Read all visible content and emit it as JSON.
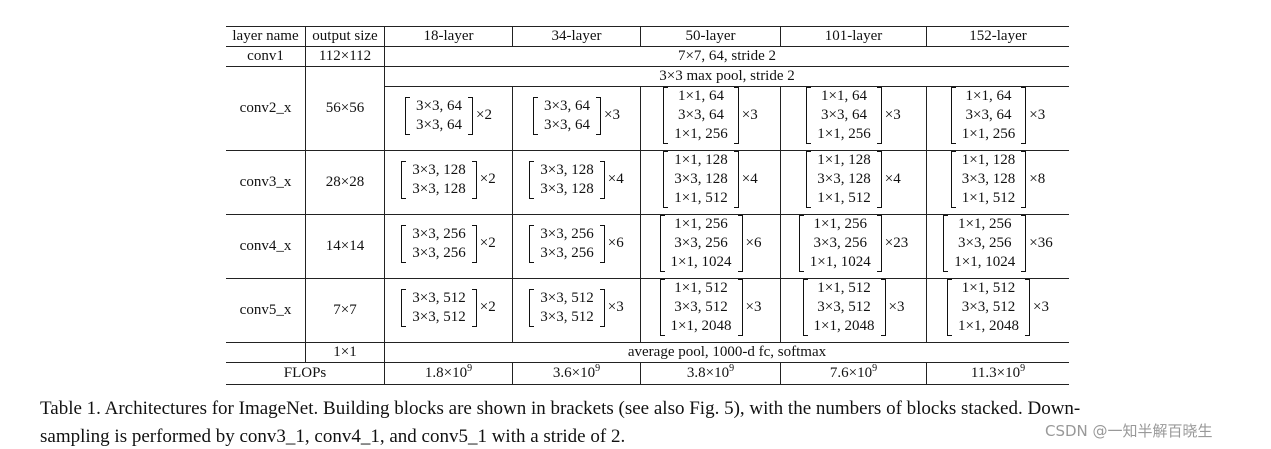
{
  "table": {
    "header": [
      "layer name",
      "output size",
      "18-layer",
      "34-layer",
      "50-layer",
      "101-layer",
      "152-layer"
    ],
    "conv1": {
      "name": "conv1",
      "size": "112×112",
      "spec": "7×7, 64, stride 2"
    },
    "pool": "3×3 max pool, stride 2",
    "stages": [
      {
        "name": "conv2_x",
        "size": "56×56",
        "blocks": [
          {
            "lines": [
              "3×3, 64",
              "3×3, 64"
            ],
            "times": "×2"
          },
          {
            "lines": [
              "3×3, 64",
              "3×3, 64"
            ],
            "times": "×3"
          },
          {
            "lines": [
              "1×1, 64",
              "3×3, 64",
              "1×1, 256"
            ],
            "times": "×3"
          },
          {
            "lines": [
              "1×1, 64",
              "3×3, 64",
              "1×1, 256"
            ],
            "times": "×3"
          },
          {
            "lines": [
              "1×1, 64",
              "3×3, 64",
              "1×1, 256"
            ],
            "times": "×3"
          }
        ]
      },
      {
        "name": "conv3_x",
        "size": "28×28",
        "blocks": [
          {
            "lines": [
              "3×3, 128",
              "3×3, 128"
            ],
            "times": "×2"
          },
          {
            "lines": [
              "3×3, 128",
              "3×3, 128"
            ],
            "times": "×4"
          },
          {
            "lines": [
              "1×1, 128",
              "3×3, 128",
              "1×1, 512"
            ],
            "times": "×4"
          },
          {
            "lines": [
              "1×1, 128",
              "3×3, 128",
              "1×1, 512"
            ],
            "times": "×4"
          },
          {
            "lines": [
              "1×1, 128",
              "3×3, 128",
              "1×1, 512"
            ],
            "times": "×8"
          }
        ]
      },
      {
        "name": "conv4_x",
        "size": "14×14",
        "blocks": [
          {
            "lines": [
              "3×3, 256",
              "3×3, 256"
            ],
            "times": "×2"
          },
          {
            "lines": [
              "3×3, 256",
              "3×3, 256"
            ],
            "times": "×6"
          },
          {
            "lines": [
              "1×1, 256",
              "3×3, 256",
              "1×1, 1024"
            ],
            "times": "×6"
          },
          {
            "lines": [
              "1×1, 256",
              "3×3, 256",
              "1×1, 1024"
            ],
            "times": "×23"
          },
          {
            "lines": [
              "1×1, 256",
              "3×3, 256",
              "1×1, 1024"
            ],
            "times": "×36"
          }
        ]
      },
      {
        "name": "conv5_x",
        "size": "7×7",
        "blocks": [
          {
            "lines": [
              "3×3, 512",
              "3×3, 512"
            ],
            "times": "×2"
          },
          {
            "lines": [
              "3×3, 512",
              "3×3, 512"
            ],
            "times": "×3"
          },
          {
            "lines": [
              "1×1, 512",
              "3×3, 512",
              "1×1, 2048"
            ],
            "times": "×3"
          },
          {
            "lines": [
              "1×1, 512",
              "3×3, 512",
              "1×1, 2048"
            ],
            "times": "×3"
          },
          {
            "lines": [
              "1×1, 512",
              "3×3, 512",
              "1×1, 2048"
            ],
            "times": "×3"
          }
        ]
      }
    ],
    "final": {
      "size": "1×1",
      "spec": "average pool, 1000-d fc, softmax"
    },
    "flops": {
      "label": "FLOPs",
      "values": [
        {
          "base": "1.8×10",
          "exp": "9"
        },
        {
          "base": "3.6×10",
          "exp": "9"
        },
        {
          "base": "3.8×10",
          "exp": "9"
        },
        {
          "base": "7.6×10",
          "exp": "9"
        },
        {
          "base": "11.3×10",
          "exp": "9"
        }
      ]
    }
  },
  "caption": [
    "Table 1. Architectures for ImageNet. Building blocks are shown in brackets (see also Fig. 5), with the numbers of blocks stacked. Down-",
    "sampling is performed by conv3_1, conv4_1, and conv5_1 with a stride of 2."
  ],
  "watermark": "CSDN @一知半解百晓生"
}
